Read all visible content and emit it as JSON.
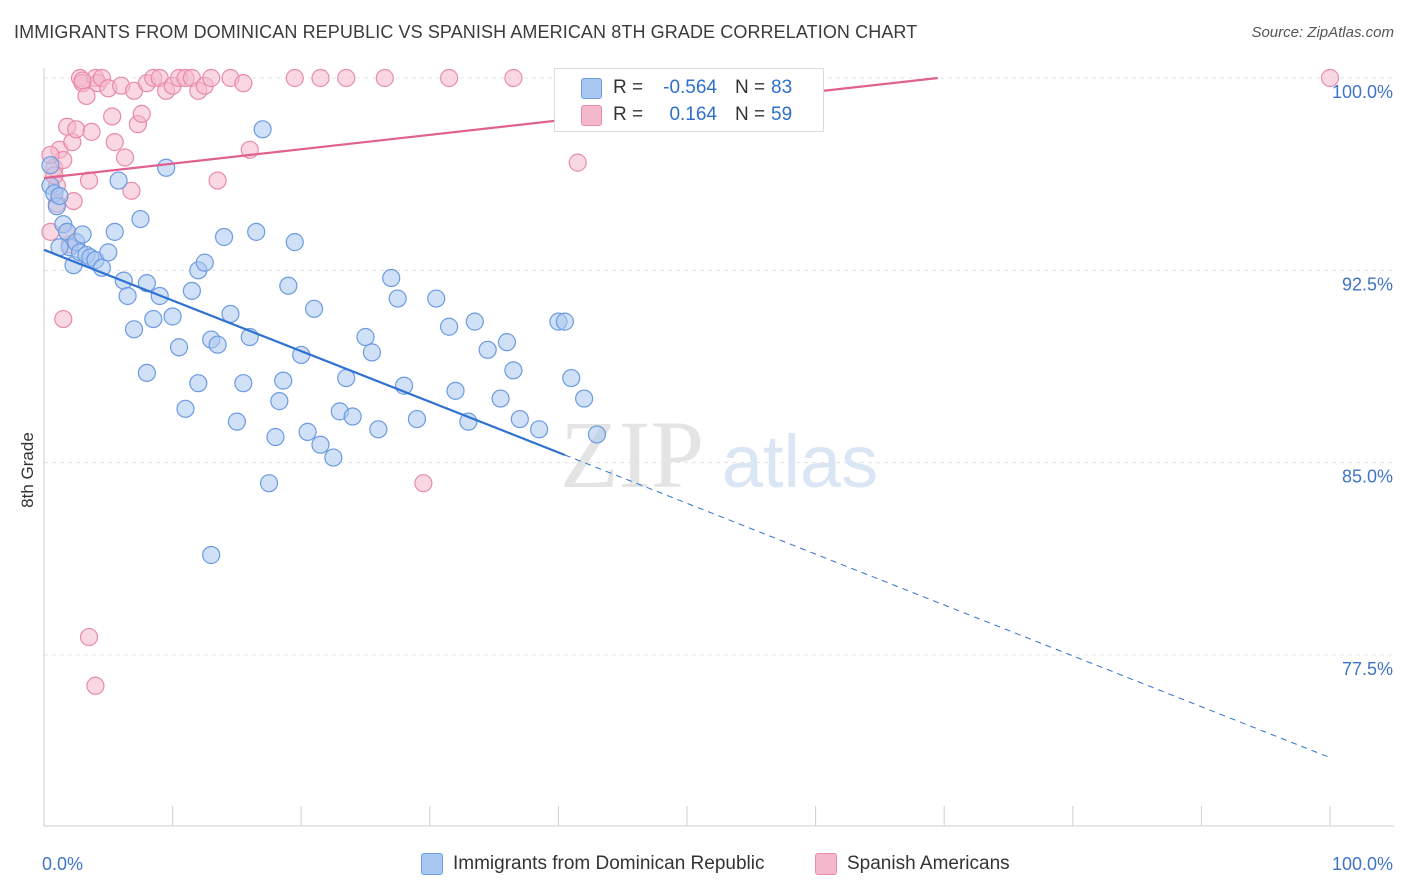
{
  "title": "IMMIGRANTS FROM DOMINICAN REPUBLIC VS SPANISH AMERICAN 8TH GRADE CORRELATION CHART",
  "source": "Source: ZipAtlas.com",
  "watermark": {
    "zip": "ZIP",
    "atlas": "atlas"
  },
  "colors": {
    "blue_fill": "#a9c7f0",
    "blue_stroke": "#6c9be0",
    "blue_line": "#2f72d0",
    "pink_fill": "#f4b8cc",
    "pink_stroke": "#e98aab",
    "pink_line": "#e0608e",
    "tick_text": "#3f74c6"
  },
  "legend": {
    "rows": [
      {
        "r_label": "R =",
        "r_value": "-0.564",
        "n_label": "N =",
        "n_value": "83"
      },
      {
        "r_label": "R =",
        "r_value": "0.164",
        "n_label": "N =",
        "n_value": "59"
      }
    ]
  },
  "chart_data": {
    "type": "scatter",
    "xlabel": "",
    "ylabel": "8th Grade",
    "xlim": [
      0,
      100
    ],
    "ylim": [
      70.5,
      101.5
    ],
    "x_tick_labels": [
      "0.0%",
      "100.0%"
    ],
    "y_ticks": [
      77.5,
      85.0,
      92.5,
      100.0
    ],
    "y_tick_labels": [
      "77.5%",
      "85.0%",
      "92.5%",
      "100.0%"
    ],
    "grid": true,
    "legend_position": "top-center",
    "series": [
      {
        "name": "Immigrants from Dominican Republic",
        "color": "#a9c7f0",
        "trend": {
          "x0": 0,
          "y0": 93.3,
          "x1": 40.5,
          "y1": 85.3,
          "dashed_to_x": 100,
          "dashed_to_y": 73.5
        },
        "points": [
          [
            0.5,
            95.8
          ],
          [
            0.8,
            95.5
          ],
          [
            1.0,
            95.0
          ],
          [
            1.2,
            95.4
          ],
          [
            1.5,
            94.3
          ],
          [
            1.8,
            94.0
          ],
          [
            2.0,
            93.4
          ],
          [
            2.3,
            92.7
          ],
          [
            2.5,
            93.6
          ],
          [
            2.8,
            93.2
          ],
          [
            3.0,
            93.9
          ],
          [
            3.3,
            93.1
          ],
          [
            3.6,
            93.0
          ],
          [
            4.0,
            92.9
          ],
          [
            4.5,
            92.6
          ],
          [
            5.0,
            93.2
          ],
          [
            5.5,
            94.0
          ],
          [
            5.8,
            96.0
          ],
          [
            6.2,
            92.1
          ],
          [
            6.5,
            91.5
          ],
          [
            7.0,
            90.2
          ],
          [
            7.5,
            94.5
          ],
          [
            8.0,
            92.0
          ],
          [
            8.5,
            90.6
          ],
          [
            9.0,
            91.5
          ],
          [
            9.5,
            96.5
          ],
          [
            10.0,
            90.7
          ],
          [
            10.5,
            89.5
          ],
          [
            11.0,
            87.1
          ],
          [
            11.5,
            91.7
          ],
          [
            12.0,
            92.5
          ],
          [
            12.5,
            92.8
          ],
          [
            13.0,
            89.8
          ],
          [
            13.5,
            89.6
          ],
          [
            14.0,
            93.8
          ],
          [
            14.5,
            90.8
          ],
          [
            15.0,
            86.6
          ],
          [
            15.5,
            88.1
          ],
          [
            16.0,
            89.9
          ],
          [
            16.5,
            94.0
          ],
          [
            17.0,
            98.0
          ],
          [
            17.5,
            84.2
          ],
          [
            18.0,
            86.0
          ],
          [
            18.3,
            87.4
          ],
          [
            18.6,
            88.2
          ],
          [
            19.0,
            91.9
          ],
          [
            19.5,
            93.6
          ],
          [
            20.0,
            89.2
          ],
          [
            20.5,
            86.2
          ],
          [
            21.0,
            91.0
          ],
          [
            21.5,
            85.7
          ],
          [
            22.5,
            85.2
          ],
          [
            23.0,
            87.0
          ],
          [
            23.5,
            88.3
          ],
          [
            24.0,
            86.8
          ],
          [
            25.0,
            89.9
          ],
          [
            25.5,
            89.3
          ],
          [
            26.0,
            86.3
          ],
          [
            27.0,
            92.2
          ],
          [
            27.5,
            91.4
          ],
          [
            28.0,
            88.0
          ],
          [
            29.0,
            86.7
          ],
          [
            30.5,
            91.4
          ],
          [
            31.5,
            90.3
          ],
          [
            32.0,
            87.8
          ],
          [
            33.0,
            86.6
          ],
          [
            33.5,
            90.5
          ],
          [
            34.5,
            89.4
          ],
          [
            35.5,
            87.5
          ],
          [
            36.0,
            89.7
          ],
          [
            36.5,
            88.6
          ],
          [
            37.0,
            86.7
          ],
          [
            38.5,
            86.3
          ],
          [
            40.0,
            90.5
          ],
          [
            40.5,
            90.5
          ],
          [
            41.0,
            88.3
          ],
          [
            42.0,
            87.5
          ],
          [
            43.0,
            86.1
          ],
          [
            13.0,
            81.4
          ],
          [
            0.5,
            96.6
          ],
          [
            1.2,
            93.4
          ],
          [
            12.0,
            88.1
          ],
          [
            8.0,
            88.5
          ]
        ]
      },
      {
        "name": "Spanish Americans",
        "color": "#f4b8cc",
        "trend": {
          "x0": 0,
          "y0": 96.1,
          "x1": 69.5,
          "y1": 100.0
        },
        "points": [
          [
            0.5,
            94.0
          ],
          [
            0.8,
            96.5
          ],
          [
            1.0,
            95.8
          ],
          [
            1.2,
            97.2
          ],
          [
            1.5,
            96.8
          ],
          [
            1.8,
            98.1
          ],
          [
            2.0,
            93.5
          ],
          [
            2.2,
            97.5
          ],
          [
            2.5,
            98.0
          ],
          [
            2.8,
            100.0
          ],
          [
            3.0,
            99.8
          ],
          [
            3.3,
            99.3
          ],
          [
            3.5,
            96.0
          ],
          [
            3.7,
            97.9
          ],
          [
            4.0,
            100.0
          ],
          [
            4.2,
            99.8
          ],
          [
            4.5,
            100.0
          ],
          [
            5.0,
            99.6
          ],
          [
            5.3,
            98.5
          ],
          [
            5.5,
            97.5
          ],
          [
            6.0,
            99.7
          ],
          [
            6.3,
            96.9
          ],
          [
            6.8,
            95.6
          ],
          [
            7.0,
            99.5
          ],
          [
            7.3,
            98.2
          ],
          [
            7.6,
            98.6
          ],
          [
            8.0,
            99.8
          ],
          [
            8.5,
            100.0
          ],
          [
            9.0,
            100.0
          ],
          [
            9.5,
            99.5
          ],
          [
            10.0,
            99.7
          ],
          [
            10.5,
            100.0
          ],
          [
            11.0,
            100.0
          ],
          [
            11.5,
            100.0
          ],
          [
            12.0,
            99.5
          ],
          [
            12.5,
            99.7
          ],
          [
            13.0,
            100.0
          ],
          [
            13.5,
            96.0
          ],
          [
            14.5,
            100.0
          ],
          [
            15.5,
            99.8
          ],
          [
            16.0,
            97.2
          ],
          [
            19.5,
            100.0
          ],
          [
            21.5,
            100.0
          ],
          [
            23.5,
            100.0
          ],
          [
            26.5,
            100.0
          ],
          [
            29.5,
            84.2
          ],
          [
            31.5,
            100.0
          ],
          [
            36.5,
            100.0
          ],
          [
            41.5,
            96.7
          ],
          [
            100.0,
            100.0
          ],
          [
            0.5,
            97.0
          ],
          [
            1.0,
            95.1
          ],
          [
            1.5,
            90.6
          ],
          [
            3.5,
            78.2
          ],
          [
            4.0,
            76.3
          ],
          [
            2.3,
            95.2
          ],
          [
            0.8,
            96.2
          ],
          [
            1.8,
            94.0
          ],
          [
            3.0,
            99.9
          ]
        ]
      }
    ]
  }
}
